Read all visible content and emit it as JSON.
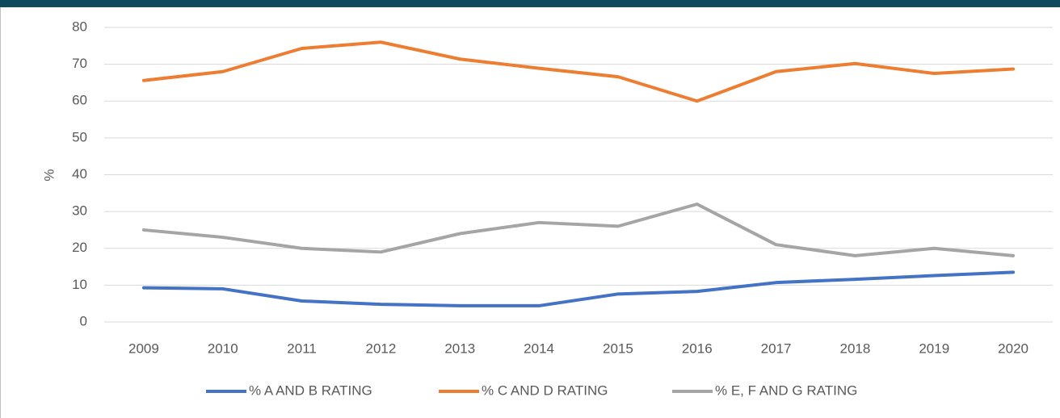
{
  "chart_data": {
    "type": "line",
    "y_label": "%",
    "categories": [
      "2009",
      "2010",
      "2011",
      "2012",
      "2013",
      "2014",
      "2015",
      "2016",
      "2017",
      "2018",
      "2019",
      "2020"
    ],
    "series": [
      {
        "name": "% A AND B RATING",
        "color": "#4472c4",
        "values": [
          9.3,
          9.0,
          5.7,
          4.8,
          4.4,
          4.4,
          7.6,
          8.3,
          10.7,
          11.6,
          12.6,
          13.5
        ]
      },
      {
        "name": "% C AND D RATING",
        "color": "#ed7d31",
        "values": [
          65.6,
          68,
          74.3,
          76,
          71.4,
          68.9,
          66.6,
          60,
          68,
          70.2,
          67.5,
          68.7
        ]
      },
      {
        "name": "% E, F AND G RATING",
        "color": "#a5a5a5",
        "values": [
          25,
          23,
          20,
          19,
          24,
          27,
          26,
          32,
          21,
          18,
          20,
          18
        ]
      }
    ],
    "ylim": [
      0,
      80
    ],
    "yticks": [
      0,
      10,
      20,
      30,
      40,
      50,
      60,
      70,
      80
    ],
    "grid": true,
    "legend": "bottom"
  }
}
